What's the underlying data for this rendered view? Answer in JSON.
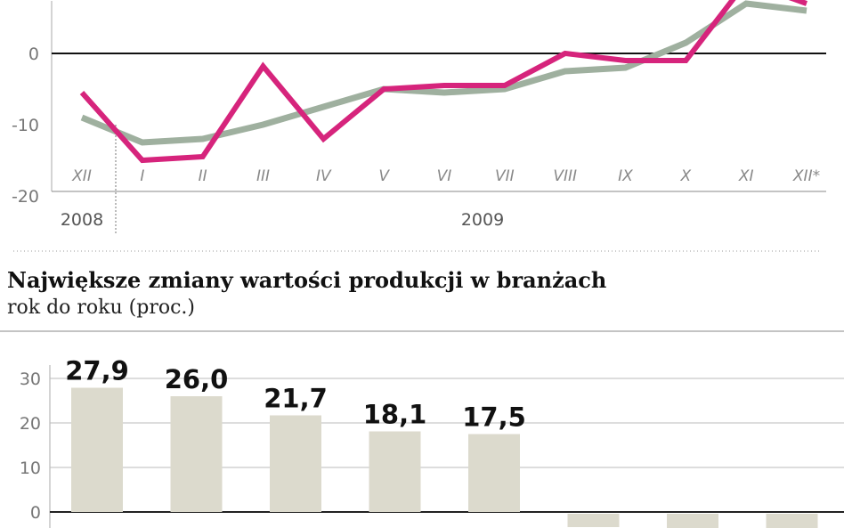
{
  "chart_data": [
    {
      "type": "line",
      "x_categories": [
        "XII",
        "I",
        "II",
        "III",
        "IV",
        "V",
        "VI",
        "VII",
        "VIII",
        "IX",
        "X",
        "XI",
        "XII*"
      ],
      "year_labels": [
        "2008",
        "2009"
      ],
      "yticks": [
        0,
        -10,
        -20
      ],
      "ylim": [
        -20,
        7
      ],
      "series": [
        {
          "color": "#d6247c",
          "values": [
            -5.5,
            -15,
            -14.5,
            -1.8,
            -12,
            -5,
            -4.5,
            -4.5,
            0,
            -1,
            -1,
            10,
            7
          ]
        },
        {
          "color": "#9fb09f",
          "values": [
            -9,
            -12.5,
            -12,
            -10,
            -7.5,
            -5,
            -5.5,
            -5,
            -2.5,
            -2,
            1.5,
            7,
            6
          ]
        }
      ]
    },
    {
      "type": "bar",
      "title": "Największe zmiany wartości produkcji w branżach",
      "subtitle": "rok do roku (proc.)",
      "yticks": [
        30,
        20,
        10,
        0
      ],
      "ylim": [
        -5,
        30
      ],
      "values": [
        27.9,
        26.0,
        21.7,
        18.1,
        17.5,
        -3,
        -4,
        -4
      ],
      "value_labels": [
        "27,9",
        "26,0",
        "21,7",
        "18,1",
        "17,5",
        "",
        "",
        ""
      ],
      "bar_color": "#dcdacd"
    }
  ]
}
